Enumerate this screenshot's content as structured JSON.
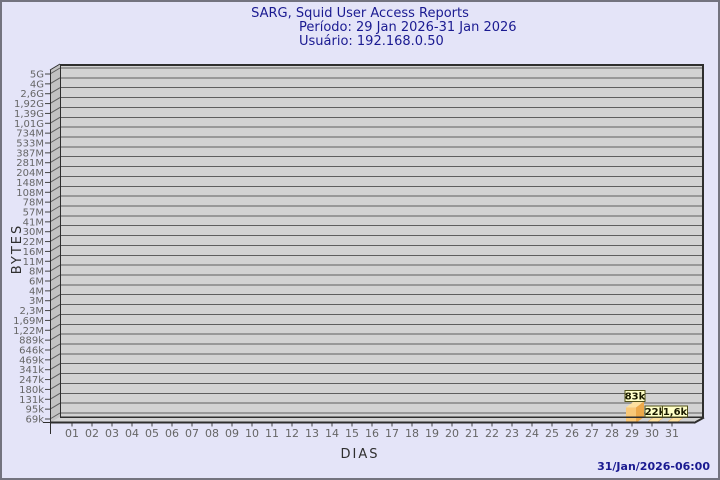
{
  "page": {
    "background": "#E4E4F8",
    "border_color": "#73737F"
  },
  "header": {
    "title": "SARG, Squid User Access Reports",
    "period": "Período: 29 Jan 2026-31 Jan 2026",
    "user": "Usuário: 192.168.0.50",
    "text_color": "#1A1A91"
  },
  "footer": {
    "timestamp": "31/Jan/2026-06:00"
  },
  "chart_data": {
    "type": "bar",
    "title": "SARG, Squid User Access Reports",
    "subtitle_period": "Período: 29 Jan 2026-31 Jan 2026",
    "subtitle_user": "Usuário: 192.168.0.50",
    "xlabel": "DIAS",
    "ylabel": "BYTES",
    "scale": "logarithmic",
    "grid": "horizontal",
    "legend_position": null,
    "x_tick_labels": [
      "01",
      "02",
      "03",
      "04",
      "05",
      "06",
      "07",
      "08",
      "09",
      "10",
      "11",
      "12",
      "13",
      "14",
      "15",
      "16",
      "17",
      "18",
      "19",
      "20",
      "21",
      "22",
      "23",
      "24",
      "25",
      "26",
      "27",
      "28",
      "29",
      "30",
      "31"
    ],
    "y_tick_labels_top_to_bottom": [
      "5G",
      "4G",
      "2,6G",
      "1,92G",
      "1,39G",
      "1,01G",
      "734M",
      "533M",
      "387M",
      "281M",
      "204M",
      "148M",
      "108M",
      "78M",
      "57M",
      "41M",
      "30M",
      "22M",
      "16M",
      "11M",
      "8M",
      "6M",
      "4M",
      "3M",
      "2,3M",
      "1,69M",
      "1,22M",
      "889k",
      "646k",
      "469k",
      "341k",
      "247k",
      "180k",
      "131k",
      "95k",
      "69k"
    ],
    "bars": [
      {
        "x": "29",
        "label": "83k",
        "value_bytes": 83000
      },
      {
        "x": "30",
        "label": "22k",
        "value_bytes": 22000
      },
      {
        "x": "31",
        "label": "1,6k",
        "value_bytes": 1600
      }
    ],
    "colors": {
      "bar_front": "#F9C878",
      "bar_side": "#EDA94A",
      "bar_top": "#FCE0A0",
      "value_box_fill": "#FFFFC8",
      "value_box_border": "#50501A",
      "value_box_text": "#1A1A00",
      "plot_bg": "#D2D2D2",
      "wall_bg": "#C2C2C2",
      "gridline": "#5E5E5E",
      "frame": "#2E2E2E",
      "tick_text": "#666666",
      "axis_title_text": "#2F2F2F"
    }
  }
}
